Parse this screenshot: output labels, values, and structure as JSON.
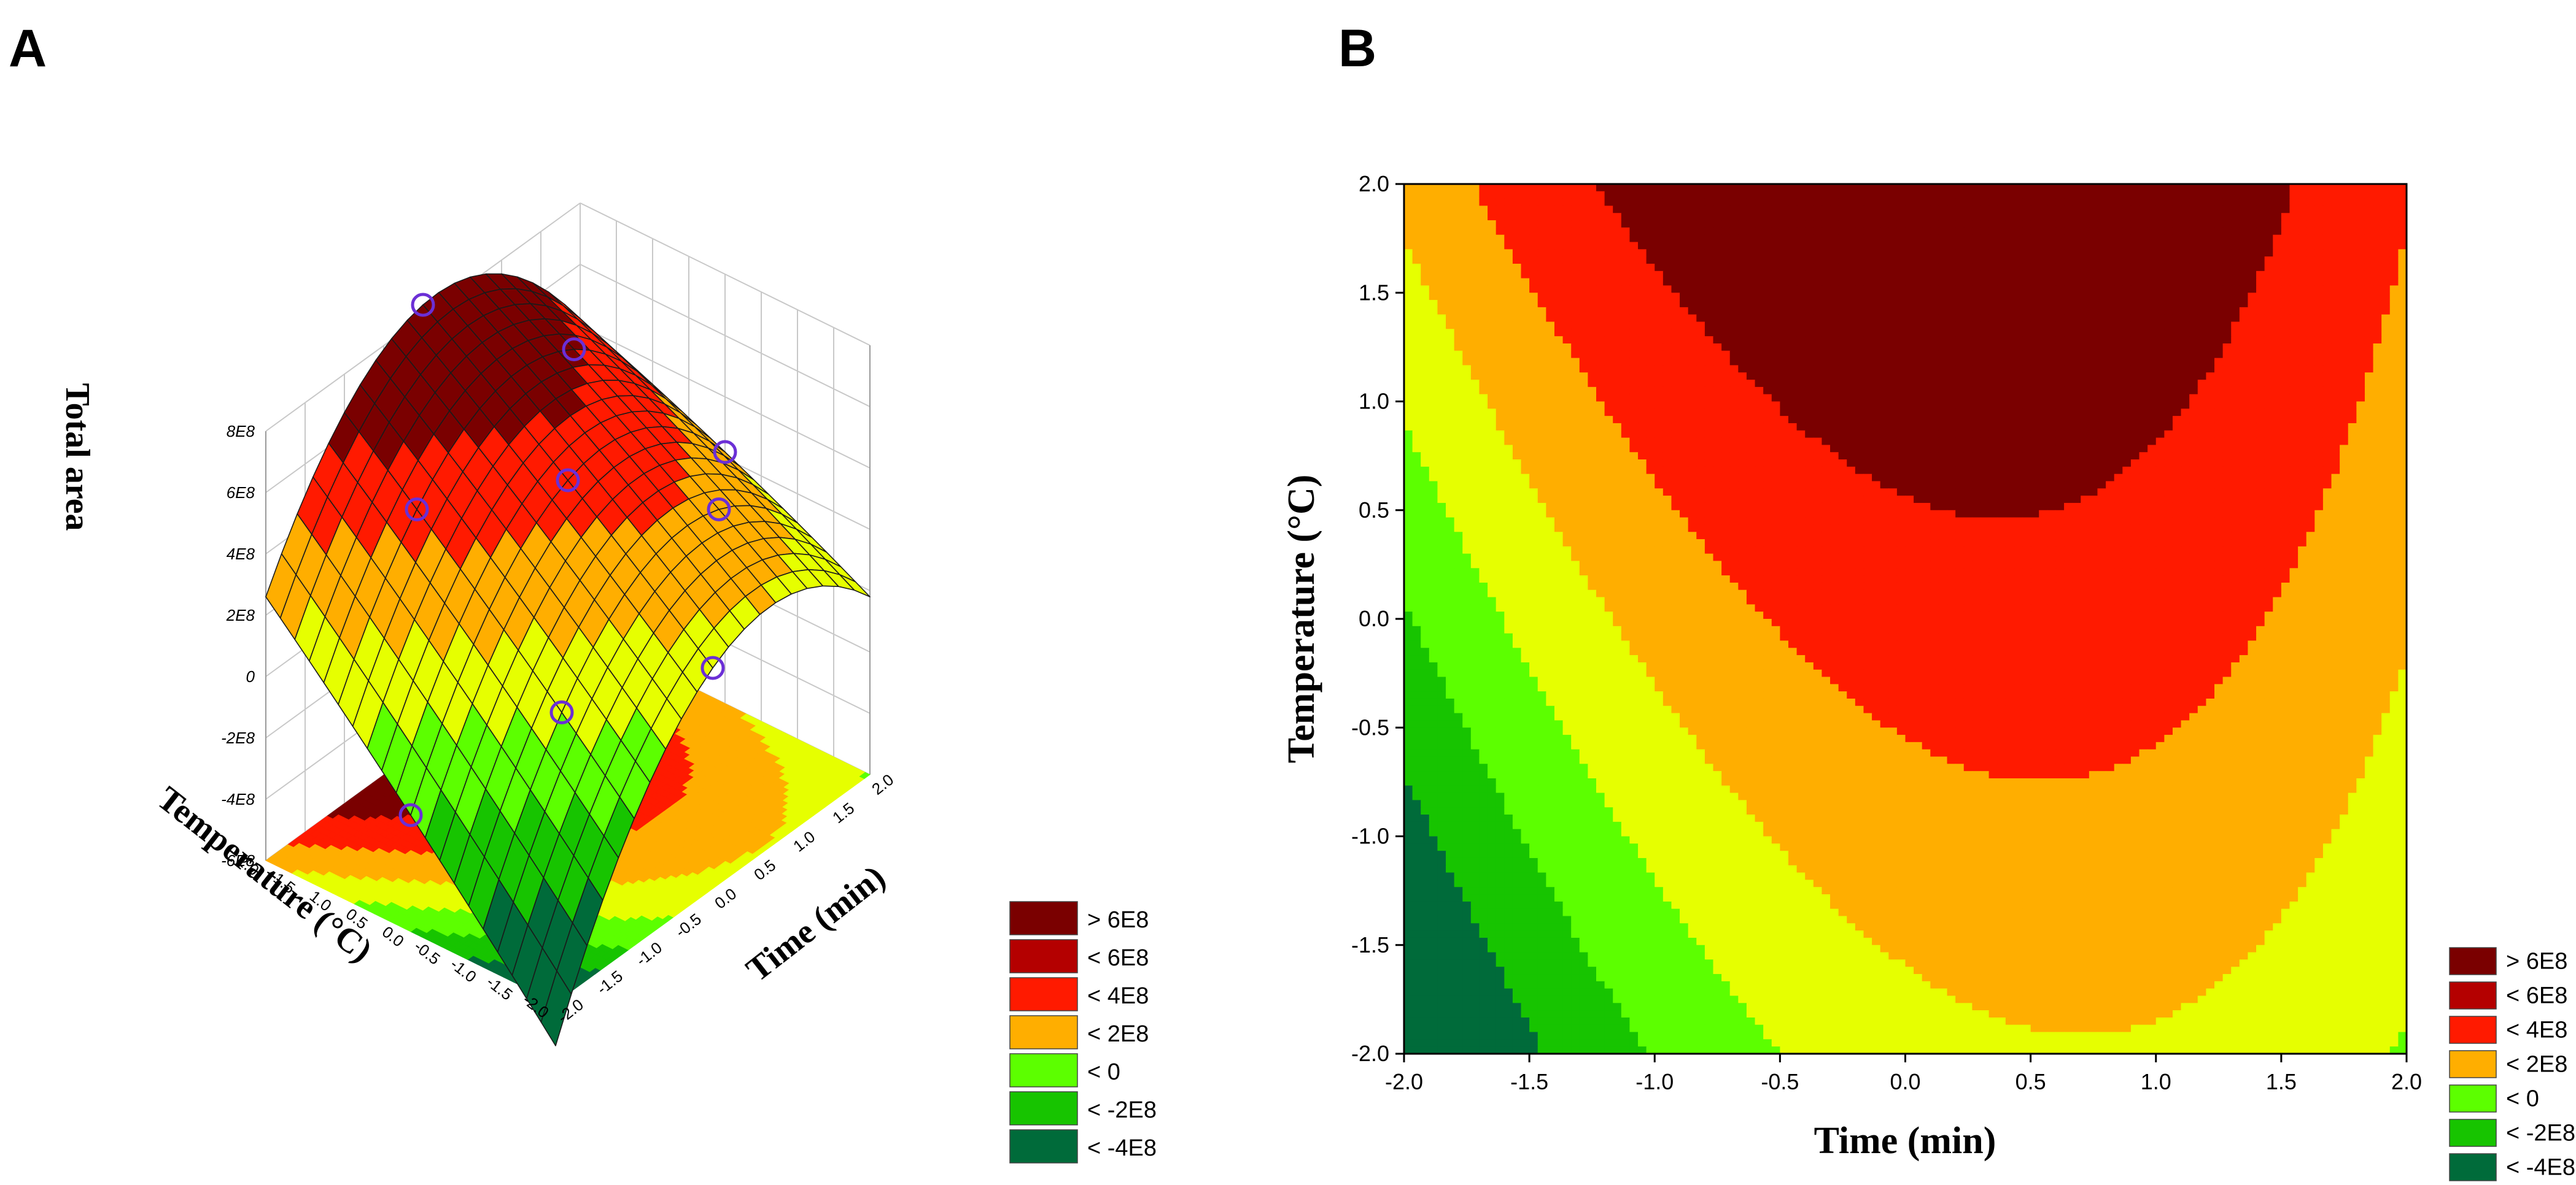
{
  "chart_data": [
    {
      "panel": "A",
      "type": "surface-3d",
      "zlabel": "Total area",
      "xlabel": "Time (min)",
      "ylabel": "Temperature (°C)",
      "xlim": [
        -2.0,
        2.0
      ],
      "ylim": [
        -2.0,
        2.0
      ],
      "zlim": [
        -600000000.0,
        800000000.0
      ],
      "x_ticks": [
        "-2.0",
        "-1.5",
        "-1.0",
        "-0.5",
        "0.0",
        "0.5",
        "1.0",
        "1.5",
        "2.0"
      ],
      "y_ticks": [
        "-2.0",
        "-1.5",
        "-1.0",
        "-0.5",
        "0.0",
        "0.5",
        "1.0",
        "1.5",
        "2.0"
      ],
      "z_ticks": [
        "-6E8",
        "-4E8",
        "-2E8",
        "0",
        "2E8",
        "4E8",
        "6E8",
        "8E8"
      ],
      "model": {
        "b0": 500000000.0,
        "bx": 110000000.0,
        "by": 180000000.0,
        "bxx": -125000000.0,
        "byy": -5000000.0,
        "bxy": -35000000.0
      },
      "design_points": [
        {
          "x": 0,
          "y": 0,
          "z": 500000000.0
        },
        {
          "x": -1,
          "y": 1,
          "z": 280000000.0
        },
        {
          "x": 1,
          "y": 1,
          "z": 790000000.0
        },
        {
          "x": -1,
          "y": -1,
          "z": -180000000.0
        },
        {
          "x": 1,
          "y": -1,
          "z": 370000000.0
        },
        {
          "x": 0,
          "y": 2,
          "z": 690000000.0
        },
        {
          "x": 0,
          "y": -2,
          "z": -100000000.0
        },
        {
          "x": 2,
          "y": 0,
          "z": 210000000.0
        },
        {
          "x": -2,
          "y": 0,
          "z": -190000000.0
        }
      ],
      "legend": [
        {
          "label": "> 6E8",
          "color": "#7a0000"
        },
        {
          "label": "< 6E8",
          "color": "#b40000"
        },
        {
          "label": "< 4E8",
          "color": "#ff1a00"
        },
        {
          "label": "< 2E8",
          "color": "#ffae00"
        },
        {
          "label": "< 0",
          "color": "#5cff00"
        },
        {
          "label": "< -2E8",
          "color": "#17c400"
        },
        {
          "label": "< -4E8",
          "color": "#006b3a"
        }
      ]
    },
    {
      "panel": "B",
      "type": "contour",
      "xlabel": "Time (min)",
      "ylabel": "Temperature (°C)",
      "xlim": [
        -2.0,
        2.0
      ],
      "ylim": [
        -2.0,
        2.0
      ],
      "x_ticks": [
        "-2.0",
        "-1.5",
        "-1.0",
        "-0.5",
        "0.0",
        "0.5",
        "1.0",
        "1.5",
        "2.0"
      ],
      "y_ticks": [
        "-2.0",
        "-1.5",
        "-1.0",
        "-0.5",
        "0.0",
        "0.5",
        "1.0",
        "1.5",
        "2.0"
      ],
      "levels": [
        -400000000.0,
        -200000000.0,
        0,
        200000000.0,
        400000000.0,
        600000000.0
      ],
      "level_colors": [
        "#006b3a",
        "#17c400",
        "#5cff00",
        "#e6ff00",
        "#ffae00",
        "#ff1a00",
        "#b40000",
        "#7a0000"
      ],
      "legend": [
        {
          "label": "> 6E8",
          "color": "#7a0000"
        },
        {
          "label": "< 6E8",
          "color": "#b40000"
        },
        {
          "label": "< 4E8",
          "color": "#ff1a00"
        },
        {
          "label": "< 2E8",
          "color": "#ffae00"
        },
        {
          "label": "< 0",
          "color": "#5cff00"
        },
        {
          "label": "< -2E8",
          "color": "#17c400"
        },
        {
          "label": "< -4E8",
          "color": "#006b3a"
        }
      ]
    }
  ],
  "panel_a_label": "A",
  "panel_b_label": "B",
  "colors": {
    "grid_line": "#c8c8c8",
    "mesh_line": "#1a1a1a",
    "design_point": "#6b2fd6"
  }
}
